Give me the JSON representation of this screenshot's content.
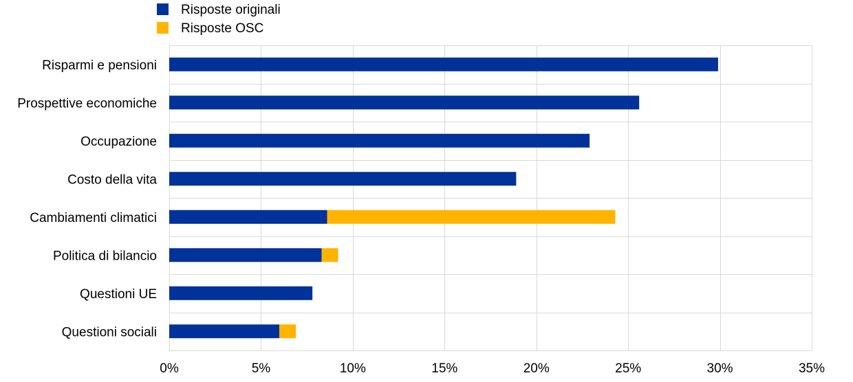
{
  "chart_data": {
    "type": "bar",
    "orientation": "horizontal",
    "stacked": true,
    "categories": [
      "Risparmi e pensioni",
      "Prospettive economiche",
      "Occupazione",
      "Costo della vita",
      "Cambiamenti climatici",
      "Politica di bilancio",
      "Questioni UE",
      "Questioni sociali"
    ],
    "series": [
      {
        "name": "Risposte originali",
        "color": "#003299",
        "values": [
          29.9,
          25.6,
          22.9,
          18.9,
          8.6,
          8.3,
          7.8,
          6.0
        ]
      },
      {
        "name": "Risposte OSC",
        "color": "#FFB400",
        "values": [
          0,
          0,
          0,
          0,
          15.7,
          0.9,
          0,
          0.9
        ]
      }
    ],
    "xlim": [
      0,
      35
    ],
    "xticks": [
      0,
      5,
      10,
      15,
      20,
      25,
      30,
      35
    ],
    "xtick_labels": [
      "0%",
      "5%",
      "10%",
      "15%",
      "20%",
      "25%",
      "30%",
      "35%"
    ],
    "grid": true,
    "legend_position": "top-left"
  }
}
